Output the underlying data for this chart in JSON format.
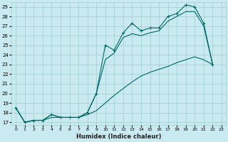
{
  "xlabel": "Humidex (Indice chaleur)",
  "background_color": "#c8eaf0",
  "grid_color": "#a0cccc",
  "line_color": "#006868",
  "xlim": [
    -0.5,
    23.5
  ],
  "ylim": [
    16.7,
    29.5
  ],
  "yticks": [
    17,
    18,
    19,
    20,
    21,
    22,
    23,
    24,
    25,
    26,
    27,
    28,
    29
  ],
  "xticks": [
    0,
    1,
    2,
    3,
    4,
    5,
    6,
    7,
    8,
    9,
    10,
    11,
    12,
    13,
    14,
    15,
    16,
    17,
    18,
    19,
    20,
    21,
    22,
    23
  ],
  "series": [
    {
      "x": [
        0,
        1,
        2,
        3,
        4,
        5,
        6,
        7,
        8,
        9,
        10,
        11,
        12,
        13,
        14,
        15,
        16,
        17,
        18,
        19,
        20,
        21,
        22
      ],
      "y": [
        18.5,
        17.0,
        17.2,
        17.2,
        17.8,
        17.5,
        17.5,
        17.5,
        18.0,
        20.0,
        25.0,
        24.5,
        26.3,
        27.3,
        26.5,
        26.8,
        26.8,
        28.0,
        28.3,
        29.2,
        29.0,
        27.3,
        23.0
      ],
      "marker": "+"
    },
    {
      "x": [
        0,
        1,
        2,
        3,
        4,
        5,
        6,
        7,
        8,
        9,
        10,
        11,
        12,
        13,
        14,
        15,
        16,
        17,
        18,
        19,
        20,
        21,
        22
      ],
      "y": [
        18.5,
        17.0,
        17.2,
        17.2,
        17.8,
        17.5,
        17.5,
        17.5,
        18.0,
        20.0,
        23.5,
        24.2,
        25.8,
        26.2,
        26.0,
        26.3,
        26.5,
        27.5,
        28.0,
        28.5,
        28.5,
        27.0,
        23.0
      ],
      "marker": null
    },
    {
      "x": [
        0,
        1,
        2,
        3,
        4,
        5,
        6,
        7,
        8,
        9,
        10,
        11,
        12,
        13,
        14,
        15,
        16,
        17,
        18,
        19,
        20,
        21,
        22
      ],
      "y": [
        18.5,
        17.0,
        17.2,
        17.2,
        17.5,
        17.5,
        17.5,
        17.5,
        17.8,
        18.2,
        19.0,
        19.8,
        20.5,
        21.2,
        21.8,
        22.2,
        22.5,
        22.8,
        23.2,
        23.5,
        23.8,
        23.5,
        23.0
      ],
      "marker": null
    }
  ]
}
